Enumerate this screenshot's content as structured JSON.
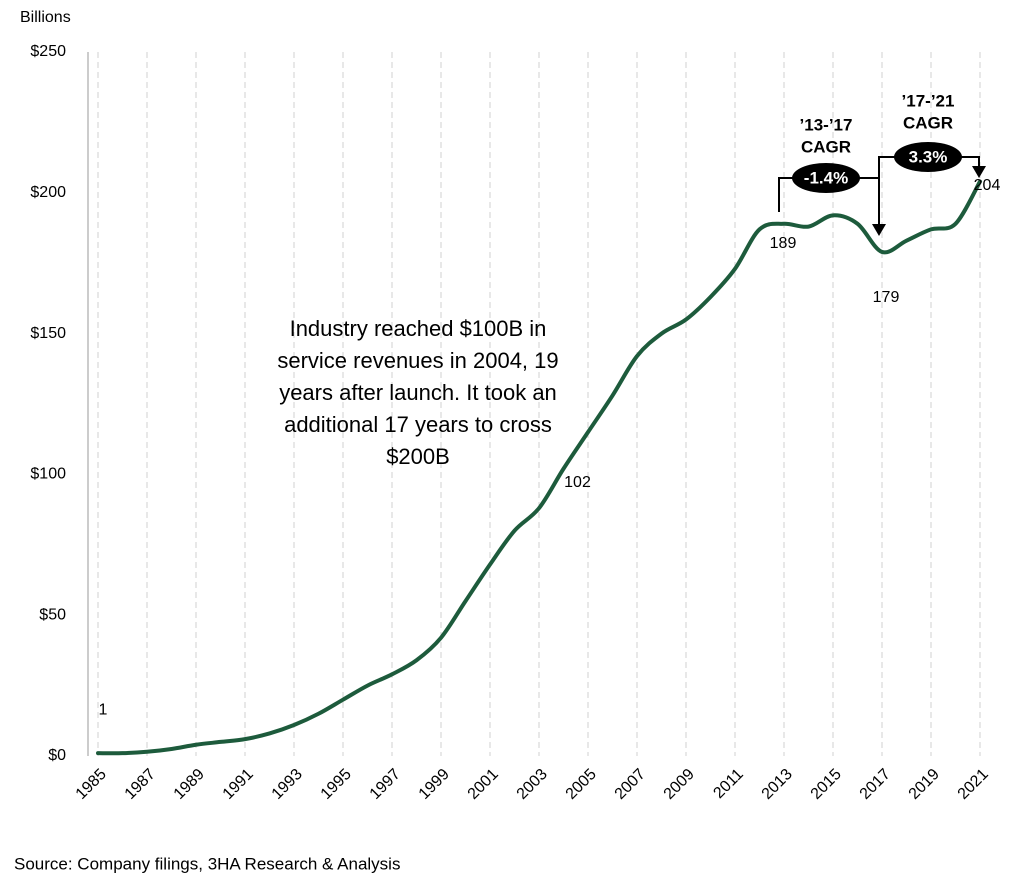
{
  "chart_data": {
    "type": "line",
    "y_axis_label": "Billions",
    "note": [
      "Industry reached $100B in",
      "service revenues in 2004, 19",
      "years after launch. It took an",
      "additional 17 years to cross",
      "$200B"
    ],
    "source": "Source: Company filings, 3HA Research & Analysis",
    "x": [
      1985,
      1986,
      1987,
      1988,
      1989,
      1990,
      1991,
      1992,
      1993,
      1994,
      1995,
      1996,
      1997,
      1998,
      1999,
      2000,
      2001,
      2002,
      2003,
      2004,
      2005,
      2006,
      2007,
      2008,
      2009,
      2010,
      2011,
      2012,
      2013,
      2014,
      2015,
      2016,
      2017,
      2018,
      2019,
      2020,
      2021
    ],
    "series": [
      {
        "color": "#1d5b3c",
        "values": [
          1,
          1,
          1.5,
          2.5,
          4,
          5,
          6,
          8,
          11,
          15,
          20,
          25,
          29,
          34,
          42,
          55,
          68,
          80,
          88,
          102,
          115,
          128,
          142,
          150,
          155,
          163,
          173,
          187,
          189,
          188,
          192,
          189,
          179,
          183,
          187,
          189,
          204
        ]
      }
    ],
    "xlim": [
      1985,
      2021
    ],
    "xticks": [
      1985,
      1987,
      1989,
      1991,
      1993,
      1995,
      1997,
      1999,
      2001,
      2003,
      2005,
      2007,
      2009,
      2011,
      2013,
      2015,
      2017,
      2019,
      2021
    ],
    "ylim": [
      0,
      250
    ],
    "yticks": [
      {
        "value": 0,
        "label": "$0"
      },
      {
        "value": 50,
        "label": "$50"
      },
      {
        "value": 100,
        "label": "$100"
      },
      {
        "value": 150,
        "label": "$150"
      },
      {
        "value": 200,
        "label": "$200"
      },
      {
        "value": 250,
        "label": "$250"
      }
    ],
    "grid": true,
    "cagr": [
      {
        "period": "’13-’17",
        "label": "CAGR",
        "rate": "-1.4%"
      },
      {
        "period": "’17-’21",
        "label": "CAGR",
        "rate": "3.3%"
      }
    ]
  }
}
